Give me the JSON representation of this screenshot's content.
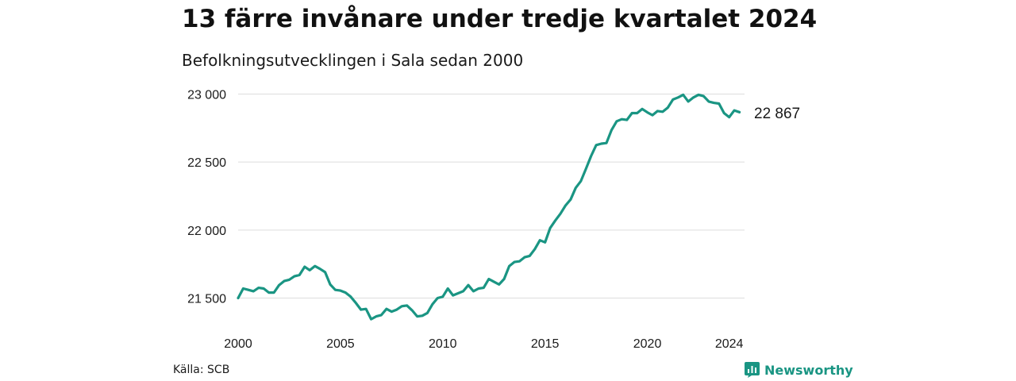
{
  "title": "13 färre invånare under tredje kvartalet 2024",
  "subtitle": "Befolkningsutvecklingen i Sala sedan 2000",
  "source": "Källa: SCB",
  "brand": {
    "name": "Newsworthy",
    "icon": "newsworthy-logo-icon"
  },
  "colors": {
    "line": "#1a9583",
    "grid": "#dddddd",
    "brand": "#1a9583"
  },
  "end_label": "22 867",
  "chart_data": {
    "type": "line",
    "title": "13 färre invånare under tredje kvartalet 2024",
    "subtitle": "Befolkningsutvecklingen i Sala sedan 2000",
    "xlabel": "",
    "ylabel": "",
    "x_ticks": [
      "2000",
      "2005",
      "2010",
      "2015",
      "2020",
      "2024"
    ],
    "y_ticks": [
      "21 500",
      "22 000",
      "22 500",
      "23 000"
    ],
    "y_tick_values": [
      21500,
      22000,
      22500,
      23000
    ],
    "ylim": [
      21300,
      23030
    ],
    "xlim": [
      2000.0,
      2024.75
    ],
    "grid": "horizontal",
    "legend": "none",
    "series": [
      {
        "values": [
          {
            "x": 2000.0,
            "y": 21500
          },
          {
            "x": 2000.25,
            "y": 21570
          },
          {
            "x": 2000.5,
            "y": 21560
          },
          {
            "x": 2000.75,
            "y": 21550
          },
          {
            "x": 2001.0,
            "y": 21575
          },
          {
            "x": 2001.25,
            "y": 21570
          },
          {
            "x": 2001.5,
            "y": 21540
          },
          {
            "x": 2001.75,
            "y": 21540
          },
          {
            "x": 2002.0,
            "y": 21595
          },
          {
            "x": 2002.25,
            "y": 21625
          },
          {
            "x": 2002.5,
            "y": 21635
          },
          {
            "x": 2002.75,
            "y": 21660
          },
          {
            "x": 2003.0,
            "y": 21670
          },
          {
            "x": 2003.25,
            "y": 21730
          },
          {
            "x": 2003.5,
            "y": 21705
          },
          {
            "x": 2003.75,
            "y": 21735
          },
          {
            "x": 2004.0,
            "y": 21715
          },
          {
            "x": 2004.25,
            "y": 21690
          },
          {
            "x": 2004.5,
            "y": 21600
          },
          {
            "x": 2004.75,
            "y": 21560
          },
          {
            "x": 2005.0,
            "y": 21555
          },
          {
            "x": 2005.25,
            "y": 21540
          },
          {
            "x": 2005.5,
            "y": 21510
          },
          {
            "x": 2005.75,
            "y": 21465
          },
          {
            "x": 2006.0,
            "y": 21415
          },
          {
            "x": 2006.25,
            "y": 21420
          },
          {
            "x": 2006.5,
            "y": 21345
          },
          {
            "x": 2006.75,
            "y": 21365
          },
          {
            "x": 2007.0,
            "y": 21375
          },
          {
            "x": 2007.25,
            "y": 21420
          },
          {
            "x": 2007.5,
            "y": 21400
          },
          {
            "x": 2007.75,
            "y": 21415
          },
          {
            "x": 2008.0,
            "y": 21440
          },
          {
            "x": 2008.25,
            "y": 21445
          },
          {
            "x": 2008.5,
            "y": 21410
          },
          {
            "x": 2008.75,
            "y": 21365
          },
          {
            "x": 2009.0,
            "y": 21370
          },
          {
            "x": 2009.25,
            "y": 21390
          },
          {
            "x": 2009.5,
            "y": 21455
          },
          {
            "x": 2009.75,
            "y": 21500
          },
          {
            "x": 2010.0,
            "y": 21510
          },
          {
            "x": 2010.25,
            "y": 21570
          },
          {
            "x": 2010.5,
            "y": 21520
          },
          {
            "x": 2010.75,
            "y": 21535
          },
          {
            "x": 2011.0,
            "y": 21550
          },
          {
            "x": 2011.25,
            "y": 21595
          },
          {
            "x": 2011.5,
            "y": 21550
          },
          {
            "x": 2011.75,
            "y": 21570
          },
          {
            "x": 2012.0,
            "y": 21575
          },
          {
            "x": 2012.25,
            "y": 21640
          },
          {
            "x": 2012.5,
            "y": 21620
          },
          {
            "x": 2012.75,
            "y": 21600
          },
          {
            "x": 2013.0,
            "y": 21640
          },
          {
            "x": 2013.25,
            "y": 21735
          },
          {
            "x": 2013.5,
            "y": 21765
          },
          {
            "x": 2013.75,
            "y": 21770
          },
          {
            "x": 2014.0,
            "y": 21800
          },
          {
            "x": 2014.25,
            "y": 21810
          },
          {
            "x": 2014.5,
            "y": 21860
          },
          {
            "x": 2014.75,
            "y": 21925
          },
          {
            "x": 2015.0,
            "y": 21910
          },
          {
            "x": 2015.25,
            "y": 22015
          },
          {
            "x": 2015.5,
            "y": 22070
          },
          {
            "x": 2015.75,
            "y": 22120
          },
          {
            "x": 2016.0,
            "y": 22180
          },
          {
            "x": 2016.25,
            "y": 22225
          },
          {
            "x": 2016.5,
            "y": 22310
          },
          {
            "x": 2016.75,
            "y": 22360
          },
          {
            "x": 2017.0,
            "y": 22450
          },
          {
            "x": 2017.25,
            "y": 22545
          },
          {
            "x": 2017.5,
            "y": 22625
          },
          {
            "x": 2017.75,
            "y": 22635
          },
          {
            "x": 2018.0,
            "y": 22640
          },
          {
            "x": 2018.25,
            "y": 22735
          },
          {
            "x": 2018.5,
            "y": 22800
          },
          {
            "x": 2018.75,
            "y": 22815
          },
          {
            "x": 2019.0,
            "y": 22810
          },
          {
            "x": 2019.25,
            "y": 22860
          },
          {
            "x": 2019.5,
            "y": 22860
          },
          {
            "x": 2019.75,
            "y": 22890
          },
          {
            "x": 2020.0,
            "y": 22865
          },
          {
            "x": 2020.25,
            "y": 22845
          },
          {
            "x": 2020.5,
            "y": 22875
          },
          {
            "x": 2020.75,
            "y": 22870
          },
          {
            "x": 2021.0,
            "y": 22900
          },
          {
            "x": 2021.25,
            "y": 22960
          },
          {
            "x": 2021.5,
            "y": 22975
          },
          {
            "x": 2021.75,
            "y": 22995
          },
          {
            "x": 2022.0,
            "y": 22945
          },
          {
            "x": 2022.25,
            "y": 22975
          },
          {
            "x": 2022.5,
            "y": 22995
          },
          {
            "x": 2022.75,
            "y": 22985
          },
          {
            "x": 2023.0,
            "y": 22945
          },
          {
            "x": 2023.25,
            "y": 22935
          },
          {
            "x": 2023.5,
            "y": 22930
          },
          {
            "x": 2023.75,
            "y": 22860
          },
          {
            "x": 2024.0,
            "y": 22830
          },
          {
            "x": 2024.25,
            "y": 22880
          },
          {
            "x": 2024.5,
            "y": 22867
          }
        ]
      }
    ]
  }
}
